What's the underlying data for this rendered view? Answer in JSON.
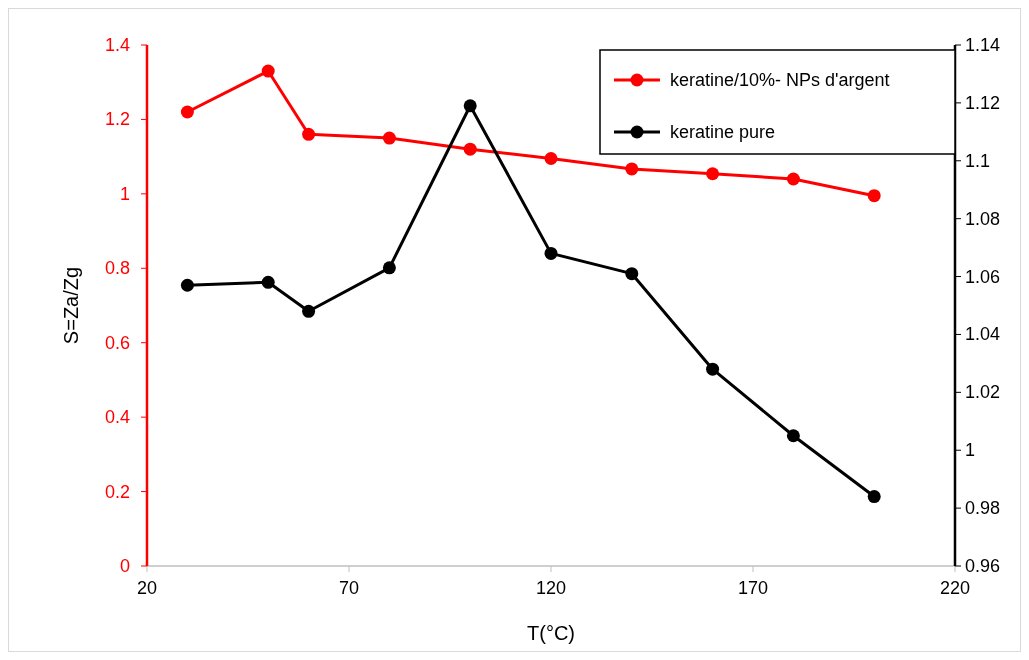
{
  "chart_data": {
    "type": "line",
    "xlabel": "T(°C)",
    "ylabel": "S=Za/Zg",
    "x": [
      30,
      50,
      60,
      80,
      100,
      120,
      140,
      160,
      180,
      200
    ],
    "xlim": [
      20,
      220
    ],
    "xticks": [
      20,
      70,
      120,
      170,
      220
    ],
    "ylim": [
      0,
      1.4
    ],
    "yticks": [
      0,
      0.2,
      0.4,
      0.6,
      0.8,
      1,
      1.2,
      1.4
    ],
    "y2lim": [
      0.96,
      1.14
    ],
    "y2ticks": [
      0.96,
      0.98,
      1,
      1.02,
      1.04,
      1.06,
      1.08,
      1.1,
      1.12,
      1.14
    ],
    "series": [
      {
        "name": "keratine/10%- NPs d'argent",
        "color": "#ff0000",
        "values": [
          1.22,
          1.33,
          1.16,
          1.15,
          1.12,
          1.095,
          1.067,
          1.054,
          1.04,
          0.995
        ]
      },
      {
        "name": "keratine pure",
        "color": "#000000",
        "axis": "y2",
        "values": [
          1.057,
          1.058,
          1.048,
          1.063,
          1.119,
          1.068,
          1.061,
          1.028,
          1.005,
          0.984
        ]
      }
    ],
    "marker": "circle",
    "line_style": "solid",
    "grid": false,
    "legend": "top right"
  }
}
